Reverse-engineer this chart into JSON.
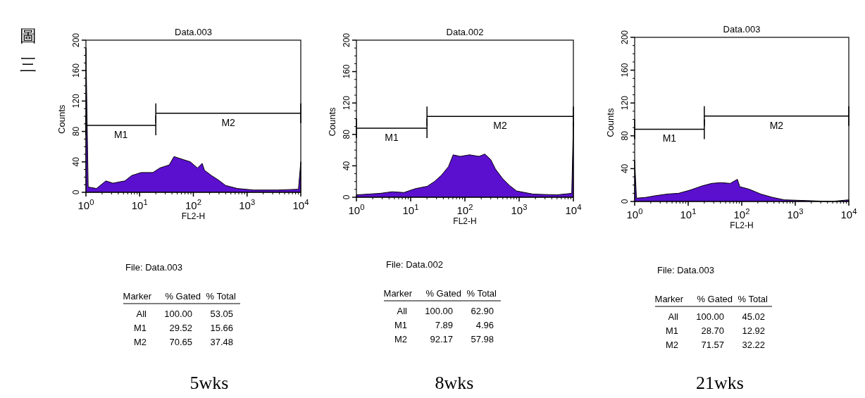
{
  "chart_data": [
    {
      "type": "area",
      "title": "Data.003",
      "xlabel": "FL2-H",
      "ylabel": "Counts",
      "log": "x",
      "xlim": [
        1,
        10000
      ],
      "ylim": [
        0,
        200
      ],
      "xticks": [
        {
          "value": 1,
          "label": "10$^{0}$"
        },
        {
          "value": 10,
          "label": "10$^{1}$"
        },
        {
          "value": 100,
          "label": "10$^{2}$"
        },
        {
          "value": 1000,
          "label": "10$^{3}$"
        },
        {
          "value": 10000,
          "label": "10$^{4}$"
        }
      ],
      "yticks": [
        0,
        40,
        80,
        120,
        160,
        200
      ],
      "series": [
        {
          "color": "#5b10d0",
          "x": [
            1,
            1.1,
            1.57,
            2.35,
            3.18,
            5.3,
            7.1,
            10.6,
            17.6,
            23.8,
            35.6,
            43.6,
            65,
            88,
            119,
            146,
            161,
            218,
            295,
            399,
            660,
            1340,
            3660,
            9040,
            10000
          ],
          "values": [
            190,
            7,
            5,
            15,
            12,
            15,
            22,
            26,
            26,
            32,
            36,
            47,
            43,
            40,
            32,
            38,
            29,
            22,
            16,
            9,
            5,
            3,
            3,
            4,
            40
          ]
        },
        {
          "type": "line",
          "name": "M1",
          "color": "#000000",
          "x": [
            1,
            20
          ],
          "values": [
            88,
            88
          ]
        },
        {
          "type": "line",
          "name": "M2",
          "color": "#000000",
          "x": [
            20,
            10000
          ],
          "values": [
            104,
            104
          ]
        }
      ],
      "annotations": [
        "File: Data.003",
        "Marker",
        "% Gated",
        "% Total",
        "All",
        "100.00",
        "53.05",
        "M1",
        "29.52",
        "15.66",
        "M2",
        "70.65",
        "37.48",
        "5wks",
        "圖三"
      ]
    },
    {
      "type": "area",
      "title": "Data.002",
      "xlabel": "FL2-H",
      "ylabel": "Counts",
      "log": "x",
      "xlim": [
        1,
        10000
      ],
      "ylim": [
        0,
        200
      ],
      "xticks": [
        {
          "value": 1,
          "label": "10$^{0}$"
        },
        {
          "value": 10,
          "label": "10$^{1}$"
        },
        {
          "value": 100,
          "label": "10$^{2}$"
        },
        {
          "value": 1000,
          "label": "10$^{3}$"
        },
        {
          "value": 10000,
          "label": "10$^{4}$"
        }
      ],
      "yticks": [
        0,
        40,
        80,
        120,
        160,
        200
      ],
      "series": [
        {
          "color": "#5b10d0",
          "x": [
            1,
            1.68,
            2.77,
            4.55,
            7.5,
            12.3,
            20.3,
            27.4,
            36.9,
            49.8,
            60.8,
            82,
            122,
            182,
            233,
            299,
            365,
            493,
            665,
            896,
            1800,
            4880,
            9330,
            10000
          ],
          "values": [
            3,
            4,
            5,
            7,
            6,
            11,
            14,
            20,
            28,
            39,
            54,
            52,
            54,
            52,
            55,
            48,
            36,
            24,
            15,
            8,
            4,
            3,
            5,
            95
          ]
        },
        {
          "type": "line",
          "name": "M1",
          "color": "#000000",
          "x": [
            1,
            20
          ],
          "values": [
            88,
            88
          ]
        },
        {
          "type": "line",
          "name": "M2",
          "color": "#000000",
          "x": [
            20,
            10000
          ],
          "values": [
            103,
            103
          ]
        }
      ],
      "annotations": [
        "File: Data.002",
        "Marker",
        "% Gated",
        "% Total",
        "All",
        "100.00",
        "62.90",
        "M1",
        "7.89",
        "4.96",
        "M2",
        "92.17",
        "57.98",
        "8wks"
      ]
    },
    {
      "type": "area",
      "title": "Data.003",
      "xlabel": "FL2-H",
      "ylabel": "Counts",
      "log": "x",
      "xlim": [
        1,
        10000
      ],
      "ylim": [
        0,
        200
      ],
      "xticks": [
        {
          "value": 1,
          "label": "10$^{0}$"
        },
        {
          "value": 10,
          "label": "10$^{1}$"
        },
        {
          "value": 100,
          "label": "10$^{2}$"
        },
        {
          "value": 1000,
          "label": "10$^{3}$"
        },
        {
          "value": 10000,
          "label": "10$^{4}$"
        }
      ],
      "yticks": [
        0,
        40,
        80,
        120,
        160,
        200
      ],
      "series": [
        {
          "color": "#5b10d0",
          "x": [
            1,
            1.08,
            1.62,
            2.43,
            4.02,
            6.67,
            11,
            18.3,
            27.4,
            41,
            61,
            83,
            92,
            137,
            228,
            377,
            624,
            1710,
            4690,
            10000
          ],
          "values": [
            50,
            4,
            5,
            7,
            9,
            10,
            14,
            19,
            22,
            23,
            22,
            27,
            18,
            15,
            9,
            5,
            2,
            1,
            0,
            2
          ]
        },
        {
          "type": "line",
          "name": "M1",
          "color": "#000000",
          "x": [
            1,
            20
          ],
          "values": [
            88,
            88
          ]
        },
        {
          "type": "line",
          "name": "M2",
          "color": "#000000",
          "x": [
            20,
            10000
          ],
          "values": [
            104,
            104
          ]
        }
      ],
      "annotations": [
        "File: Data.003",
        "Marker",
        "% Gated",
        "% Total",
        "All",
        "100.00",
        "45.02",
        "M1",
        "28.70",
        "12.92",
        "M2",
        "71.57",
        "32.22",
        "21wks"
      ]
    }
  ]
}
